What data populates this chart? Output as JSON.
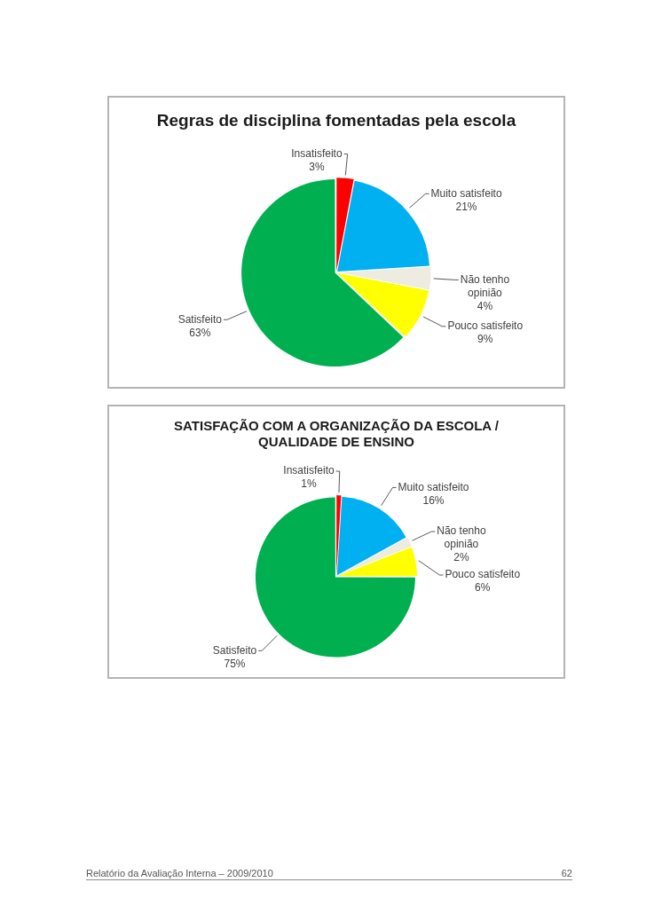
{
  "chart_data": [
    {
      "type": "pie",
      "title": "Regras de disciplina fomentadas pela escola",
      "categories": [
        "Insatisfeito",
        "Muito satisfeito",
        "Não tenho opinião",
        "Pouco satisfeito",
        "Satisfeito"
      ],
      "values": [
        3,
        21,
        4,
        9,
        63
      ],
      "value_labels": [
        "3%",
        "21%",
        "4%",
        "9%",
        "63%"
      ],
      "colors": [
        "#ff0000",
        "#00b0f0",
        "#eeece1",
        "#ffff00",
        "#00b050"
      ]
    },
    {
      "type": "pie",
      "title": "SATISFAÇÃO COM A ORGANIZAÇÃO DA ESCOLA / QUALIDADE DE ENSINO",
      "categories": [
        "Insatisfeito",
        "Muito satisfeito",
        "Não tenho opinião",
        "Pouco satisfeito",
        "Satisfeito"
      ],
      "values": [
        1,
        16,
        2,
        6,
        75
      ],
      "value_labels": [
        "1%",
        "16%",
        "2%",
        "6%",
        "75%"
      ],
      "colors": [
        "#ff0000",
        "#00b0f0",
        "#eeece1",
        "#ffff00",
        "#00b050"
      ],
      "annotations": [
        "Relatório da Avaliação Interna – 2009/2010",
        "62"
      ]
    }
  ]
}
